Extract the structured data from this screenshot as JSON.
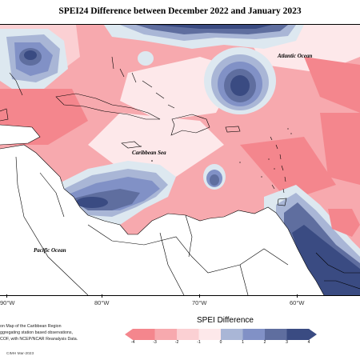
{
  "title": "SPEI24 Difference between December 2022 and January 2023",
  "labels": {
    "atlantic": "Atlantic Ocean",
    "caribbean": "Caribbean Sea",
    "pacific": "Pacific Ocean"
  },
  "longitudes": [
    "90°W",
    "80°W",
    "70°W",
    "60°W"
  ],
  "notes": [
    "on Map of the Caribbean Region",
    "ggregating station based observations,",
    "COF, with NCEP/NCAR Reanalysis Data."
  ],
  "credit": "CIMH Mar-2023",
  "legend": {
    "title": "SPEI Difference",
    "ticks": [
      "-4",
      "-3",
      "-2",
      "-1",
      "0",
      "1",
      "2",
      "3",
      "4"
    ],
    "colors": [
      "#f4868d",
      "#f7a9ae",
      "#fbd0d3",
      "#fde8ea",
      "#dde8f0",
      "#a9b6d6",
      "#8191c6",
      "#5f6e9f",
      "#3a4b82"
    ]
  }
}
